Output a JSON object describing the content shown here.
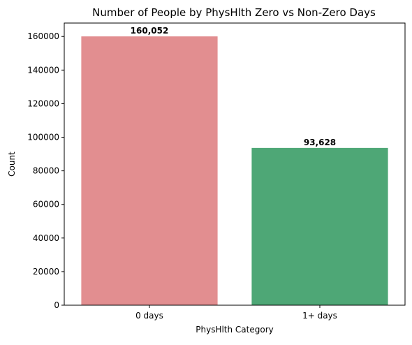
{
  "chart_data": {
    "type": "bar",
    "title": "Number of People by PhysHlth Zero vs Non-Zero Days",
    "xlabel": "PhysHlth Category",
    "ylabel": "Count",
    "categories": [
      "0 days",
      "1+ days"
    ],
    "values": [
      160052,
      93628
    ],
    "value_labels": [
      "160,052",
      "93,628"
    ],
    "colors": [
      "#e28e90",
      "#4ea776"
    ],
    "ylim": [
      0,
      168000
    ],
    "yticks": [
      0,
      20000,
      40000,
      60000,
      80000,
      100000,
      120000,
      140000,
      160000
    ],
    "grid": false,
    "legend": "none"
  }
}
